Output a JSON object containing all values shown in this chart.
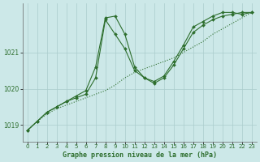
{
  "bg_color": "#cce8e8",
  "grid_color": "#aacccc",
  "line_color": "#2d6e2d",
  "title": "Graphe pression niveau de la mer (hPa)",
  "xlim": [
    -0.5,
    23.5
  ],
  "ylim": [
    1018.55,
    1022.35
  ],
  "yticks": [
    1019,
    1020,
    1021
  ],
  "xticks": [
    0,
    1,
    2,
    3,
    4,
    5,
    6,
    7,
    8,
    9,
    10,
    11,
    12,
    13,
    14,
    15,
    16,
    17,
    18,
    19,
    20,
    21,
    22,
    23
  ],
  "series": [
    {
      "x": [
        0,
        1,
        2,
        3,
        4,
        5,
        6,
        7,
        8,
        9,
        10,
        11,
        12,
        13,
        14,
        15,
        16,
        17,
        18,
        19,
        20,
        21,
        22,
        23
      ],
      "y": [
        1018.85,
        1019.1,
        1019.3,
        1019.45,
        1019.55,
        1019.65,
        1019.75,
        1019.85,
        1019.95,
        1020.1,
        1020.3,
        1020.45,
        1020.55,
        1020.65,
        1020.75,
        1020.85,
        1021.0,
        1021.15,
        1021.3,
        1021.5,
        1021.65,
        1021.8,
        1021.95,
        1022.1
      ]
    },
    {
      "x": [
        0,
        1,
        2,
        3,
        4,
        5,
        6,
        7,
        8,
        9,
        10,
        11,
        12,
        13,
        14,
        15,
        16,
        17,
        18,
        19,
        20,
        21,
        22,
        23
      ],
      "y": [
        1018.85,
        1019.1,
        1019.35,
        1019.5,
        1019.65,
        1019.75,
        1019.85,
        1020.3,
        1021.9,
        1021.5,
        1021.1,
        1020.5,
        1020.3,
        1020.15,
        1020.3,
        1020.65,
        1021.1,
        1021.55,
        1021.75,
        1021.9,
        1022.0,
        1022.05,
        1022.1,
        1022.1
      ]
    },
    {
      "x": [
        0,
        1,
        2,
        3,
        4,
        5,
        6,
        7,
        8,
        9,
        10,
        11,
        12,
        13,
        14,
        15,
        16,
        17,
        18,
        19,
        20,
        21,
        22,
        23
      ],
      "y": [
        1018.85,
        1019.1,
        1019.35,
        1019.5,
        1019.65,
        1019.8,
        1019.95,
        1020.6,
        1021.95,
        1022.0,
        1021.5,
        1020.6,
        1020.3,
        1020.2,
        1020.35,
        1020.75,
        1021.2,
        1021.7,
        1021.85,
        1022.0,
        1022.1,
        1022.1,
        1022.05,
        1022.1
      ]
    }
  ]
}
